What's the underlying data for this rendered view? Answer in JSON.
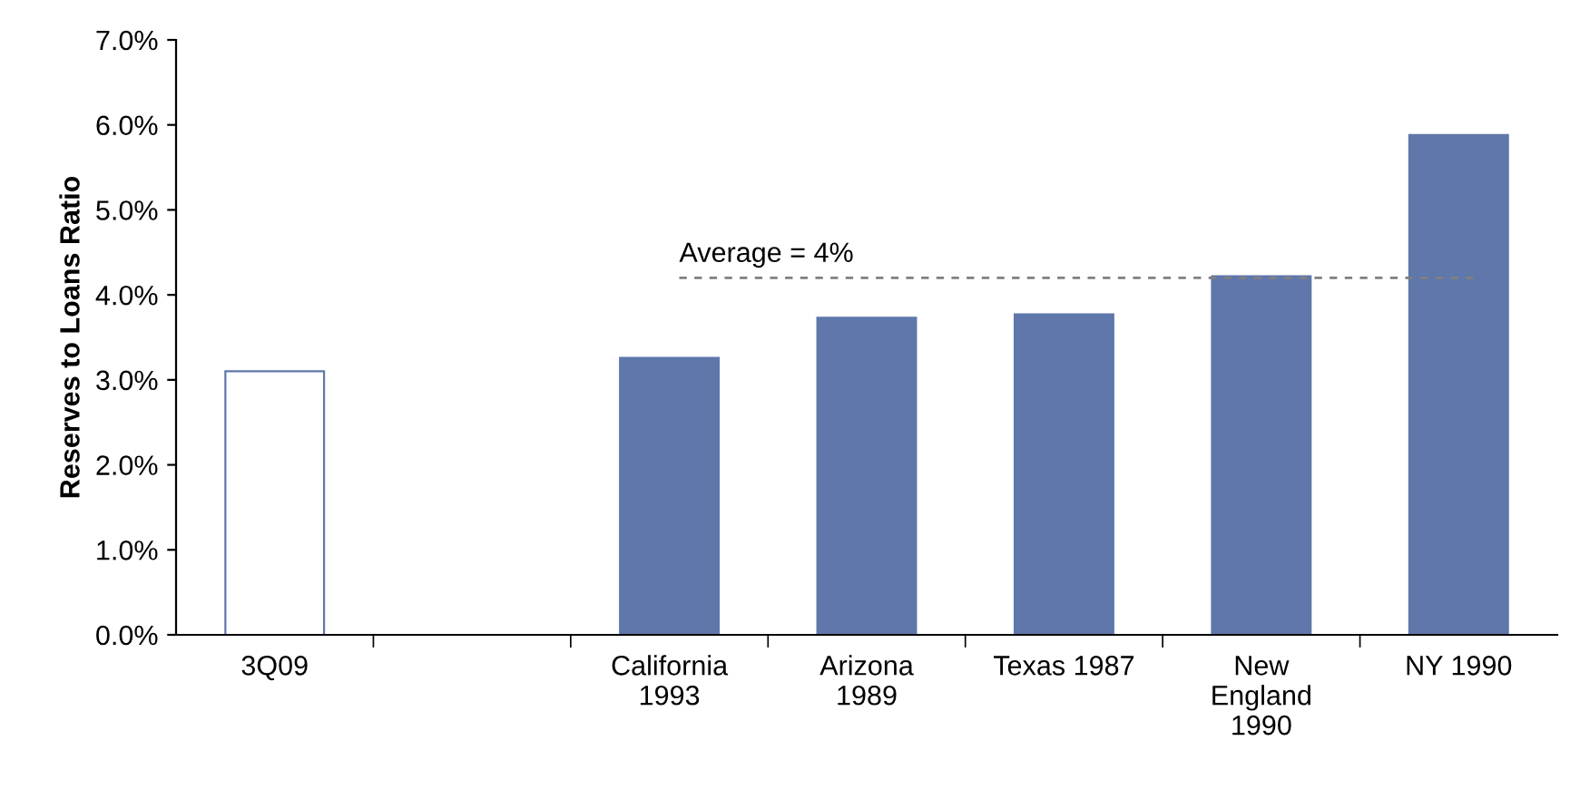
{
  "chart_data": {
    "type": "bar",
    "ylabel": "Reserves to Loans Ratio",
    "categories": [
      "3Q09",
      null,
      "California\n1993",
      "Arizona\n1989",
      "Texas 1987",
      "New\nEngland\n1990",
      "NY 1990"
    ],
    "series": [
      {
        "color": "#5f77ab",
        "colors": [
          "#ffffff",
          null,
          "#5f77ab",
          "#5f77ab",
          "#5f77ab",
          "#5f77ab",
          "#5f77ab"
        ],
        "values": [
          3.1,
          null,
          3.26,
          3.73,
          3.77,
          4.22,
          5.88
        ]
      }
    ],
    "ylim": [
      0,
      7
    ],
    "yticks": [
      {
        "value": 0,
        "label": "0.0%"
      },
      {
        "value": 1,
        "label": "1.0%"
      },
      {
        "value": 2,
        "label": "2.0%"
      },
      {
        "value": 3,
        "label": "3.0%"
      },
      {
        "value": 4,
        "label": "4.0%"
      },
      {
        "value": 5,
        "label": "5.0%"
      },
      {
        "value": 6,
        "label": "6.0%"
      },
      {
        "value": 7,
        "label": "7.0%"
      }
    ],
    "ref_lines": [
      {
        "axis": "y",
        "value": 4.2,
        "label": "Average = 4%",
        "color": "#808080",
        "line_style": "dashed"
      }
    ],
    "grid": false
  }
}
